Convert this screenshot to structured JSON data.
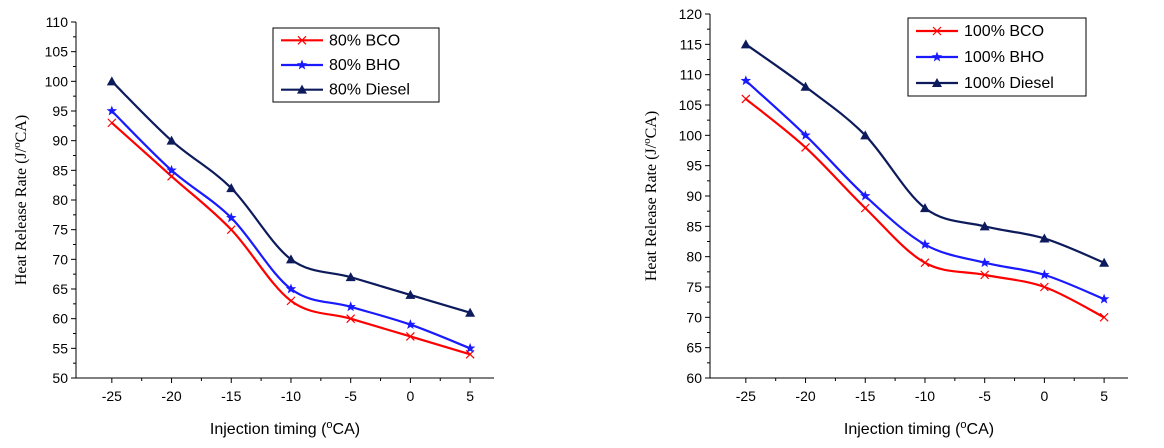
{
  "chart_data": [
    {
      "type": "line",
      "x": [
        -25,
        -20,
        -15,
        -10,
        -5,
        0,
        5
      ],
      "xlabel": "Injection timing (",
      "xlabel_sup": "o",
      "xlabel_end": "CA)",
      "ylabel": "Heat Release Rate (J/",
      "ylabel_sup": "o",
      "ylabel_end": "CA)",
      "xlim": [
        -28,
        7
      ],
      "ylim": [
        50,
        110
      ],
      "yticks": [
        50,
        55,
        60,
        65,
        70,
        75,
        80,
        85,
        90,
        95,
        100,
        105,
        110
      ],
      "legend_position": "top-right",
      "series": [
        {
          "name": "80% BCO",
          "color": "#ff0000",
          "marker": "x",
          "values": [
            93,
            84,
            75,
            63,
            60,
            57,
            54
          ]
        },
        {
          "name": "80% BHO",
          "color": "#1a1aff",
          "marker": "star",
          "values": [
            95,
            85,
            77,
            65,
            62,
            59,
            55
          ]
        },
        {
          "name": "80% Diesel",
          "color": "#0d1b5c",
          "marker": "triangle",
          "values": [
            100,
            90,
            82,
            70,
            67,
            64,
            61
          ]
        }
      ]
    },
    {
      "type": "line",
      "x": [
        -25,
        -20,
        -15,
        -10,
        -5,
        0,
        5
      ],
      "xlabel": "Injection timing (",
      "xlabel_sup": "o",
      "xlabel_end": "CA)",
      "ylabel": "Heat Release Rate (J/",
      "ylabel_sup": "o",
      "ylabel_end": "CA)",
      "xlim": [
        -28,
        7
      ],
      "ylim": [
        60,
        120
      ],
      "yticks": [
        60,
        65,
        70,
        75,
        80,
        85,
        90,
        95,
        100,
        105,
        110,
        115,
        120
      ],
      "legend_position": "top-right",
      "series": [
        {
          "name": "100% BCO",
          "color": "#ff0000",
          "marker": "x",
          "values": [
            106,
            98,
            88,
            79,
            77,
            75,
            70
          ]
        },
        {
          "name": "100% BHO",
          "color": "#1a1aff",
          "marker": "star",
          "values": [
            109,
            100,
            90,
            82,
            79,
            77,
            73
          ]
        },
        {
          "name": "100% Diesel",
          "color": "#0d1b5c",
          "marker": "triangle",
          "values": [
            115,
            108,
            100,
            88,
            85,
            83,
            79
          ]
        }
      ]
    }
  ]
}
